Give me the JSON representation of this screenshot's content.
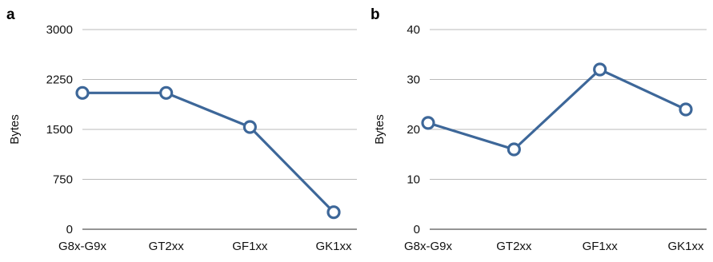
{
  "chart_data": [
    {
      "panel": "a",
      "type": "line",
      "title": "",
      "xlabel": "",
      "ylabel": "Bytes",
      "categories": [
        "G8x-G9x",
        "GT2xx",
        "GF1xx",
        "GK1xx"
      ],
      "series": [
        {
          "values": [
            2048,
            2048,
            1536,
            256
          ]
        }
      ],
      "ylim": [
        0,
        3000
      ],
      "yticks": [
        0,
        750,
        1500,
        2250,
        3000
      ],
      "grid": true,
      "legend": "none",
      "color": "#3d6799"
    },
    {
      "panel": "b",
      "type": "line",
      "title": "",
      "xlabel": "",
      "ylabel": "Bytes",
      "categories": [
        "G8x-G9x",
        "GT2xx",
        "GF1xx",
        "GK1xx"
      ],
      "series": [
        {
          "values": [
            21.3,
            16,
            32,
            24
          ]
        }
      ],
      "ylim": [
        0,
        40
      ],
      "yticks": [
        0,
        10,
        20,
        30,
        40
      ],
      "grid": true,
      "legend": "none",
      "color": "#3d6799"
    }
  ]
}
